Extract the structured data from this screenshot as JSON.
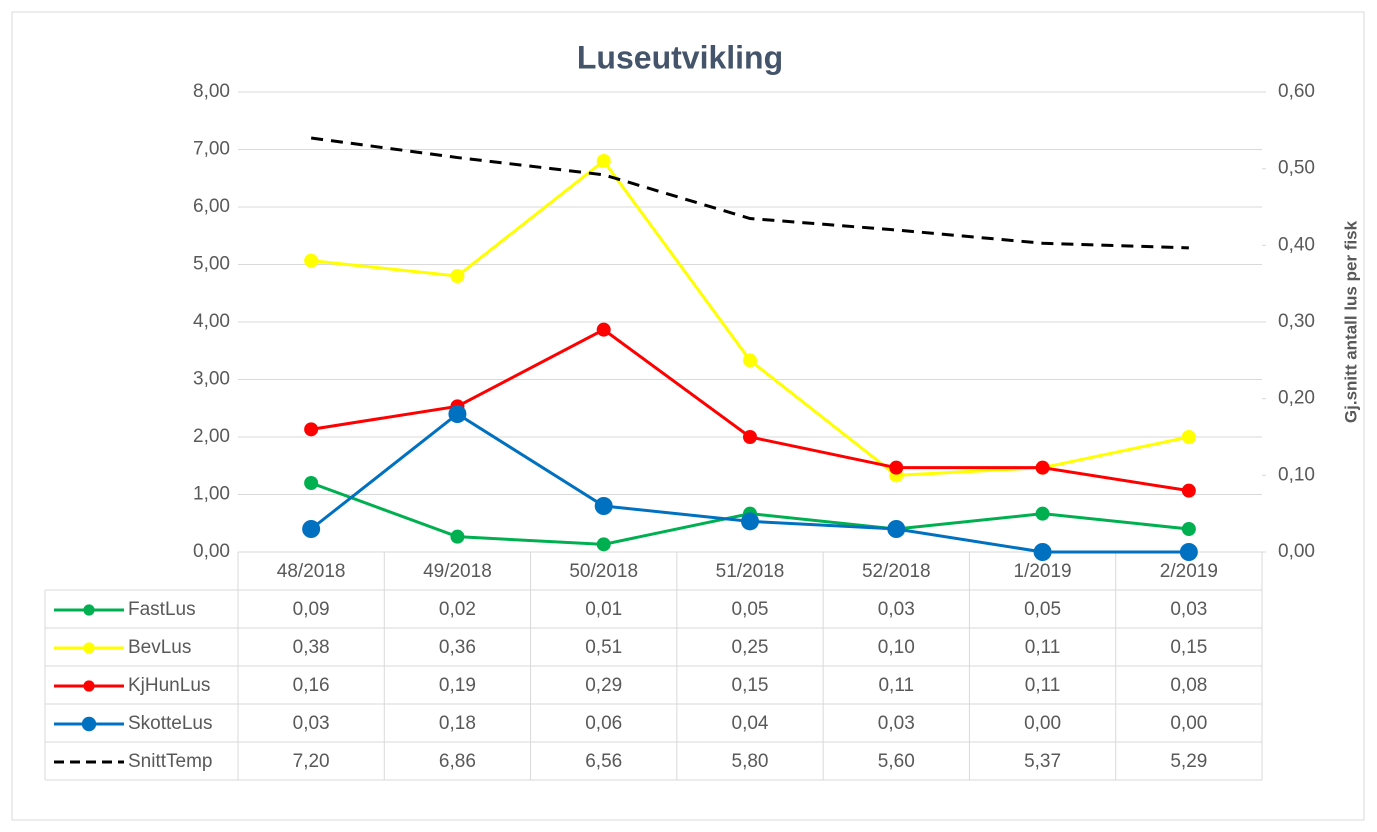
{
  "chart_data": {
    "type": "line",
    "title": "Luseutvikling",
    "y2_label": "Gj.snitt antall lus per fisk",
    "categories": [
      "48/2018",
      "49/2018",
      "50/2018",
      "51/2018",
      "52/2018",
      "1/2019",
      "2/2019"
    ],
    "ylim": [
      0,
      8
    ],
    "yticks": [
      {
        "value": 0,
        "label": "0,00"
      },
      {
        "value": 1,
        "label": "1,00"
      },
      {
        "value": 2,
        "label": "2,00"
      },
      {
        "value": 3,
        "label": "3,00"
      },
      {
        "value": 4,
        "label": "4,00"
      },
      {
        "value": 5,
        "label": "5,00"
      },
      {
        "value": 6,
        "label": "6,00"
      },
      {
        "value": 7,
        "label": "7,00"
      },
      {
        "value": 8,
        "label": "8,00"
      }
    ],
    "y2lim": [
      0,
      0.6
    ],
    "y2ticks": [
      {
        "value": 0,
        "label": "0,00"
      },
      {
        "value": 0.1,
        "label": "0,10"
      },
      {
        "value": 0.2,
        "label": "0,20"
      },
      {
        "value": 0.3,
        "label": "0,30"
      },
      {
        "value": 0.4,
        "label": "0,40"
      },
      {
        "value": 0.5,
        "label": "0,50"
      },
      {
        "value": 0.6,
        "label": "0,60"
      }
    ],
    "grid": true,
    "series": [
      {
        "name": "FastLus",
        "color": "#00b050",
        "axis": "y2",
        "marker": 7,
        "values": [
          0.09,
          0.02,
          0.01,
          0.05,
          0.03,
          0.05,
          0.03
        ],
        "value_labels": [
          "0,09",
          "0,02",
          "0,01",
          "0,05",
          "0,03",
          "0,05",
          "0,03"
        ]
      },
      {
        "name": "BevLus",
        "color": "#ffff00",
        "axis": "y2",
        "marker": 7,
        "values": [
          0.38,
          0.36,
          0.51,
          0.25,
          0.1,
          0.11,
          0.15
        ],
        "value_labels": [
          "0,38",
          "0,36",
          "0,51",
          "0,25",
          "0,10",
          "0,11",
          "0,15"
        ]
      },
      {
        "name": "KjHunLus",
        "color": "#ff0000",
        "axis": "y2",
        "marker": 7,
        "values": [
          0.16,
          0.19,
          0.29,
          0.15,
          0.11,
          0.11,
          0.08
        ],
        "value_labels": [
          "0,16",
          "0,19",
          "0,29",
          "0,15",
          "0,11",
          "0,11",
          "0,08"
        ]
      },
      {
        "name": "SkotteLus",
        "color": "#0070c0",
        "axis": "y2",
        "marker": 9,
        "values": [
          0.03,
          0.18,
          0.06,
          0.04,
          0.03,
          0.0,
          0.0
        ],
        "value_labels": [
          "0,03",
          "0,18",
          "0,06",
          "0,04",
          "0,03",
          "0,00",
          "0,00"
        ]
      },
      {
        "name": "SnittTemp",
        "color": "#000000",
        "axis": "y",
        "dashed": true,
        "values": [
          7.2,
          6.86,
          6.56,
          5.8,
          5.6,
          5.37,
          5.29
        ],
        "value_labels": [
          "7,20",
          "6,86",
          "6,56",
          "5,80",
          "5,60",
          "5,37",
          "5,29"
        ]
      }
    ]
  }
}
